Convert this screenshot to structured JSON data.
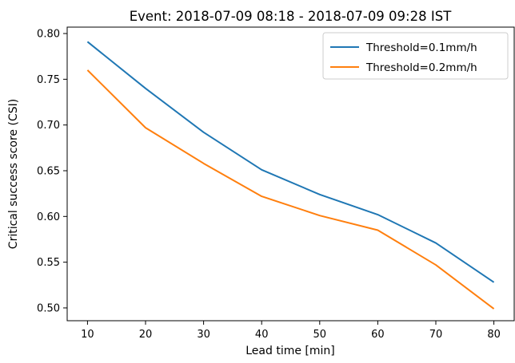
{
  "chart_data": {
    "type": "line",
    "title": "Event: 2018-07-09 08:18 - 2018-07-09 09:28 IST",
    "xlabel": "Lead time [min]",
    "ylabel": "Critical success score (CSI)",
    "x": [
      10,
      20,
      30,
      40,
      50,
      60,
      70,
      80
    ],
    "xticks": [
      "10",
      "20",
      "30",
      "40",
      "50",
      "60",
      "70",
      "80"
    ],
    "yticks": [
      "0.50",
      "0.55",
      "0.60",
      "0.65",
      "0.70",
      "0.75",
      "0.80"
    ],
    "xlim": [
      6.5,
      83.5
    ],
    "ylim": [
      0.486,
      0.807
    ],
    "grid": false,
    "legend_position": "top-right",
    "series": [
      {
        "name": "Threshold=0.1mm/h",
        "color": "#1f77b4",
        "values": [
          0.791,
          0.74,
          0.692,
          0.651,
          0.624,
          0.602,
          0.571,
          0.528
        ]
      },
      {
        "name": "Threshold=0.2mm/h",
        "color": "#ff7f0e",
        "values": [
          0.76,
          0.697,
          0.658,
          0.622,
          0.601,
          0.585,
          0.547,
          0.499
        ]
      }
    ]
  }
}
